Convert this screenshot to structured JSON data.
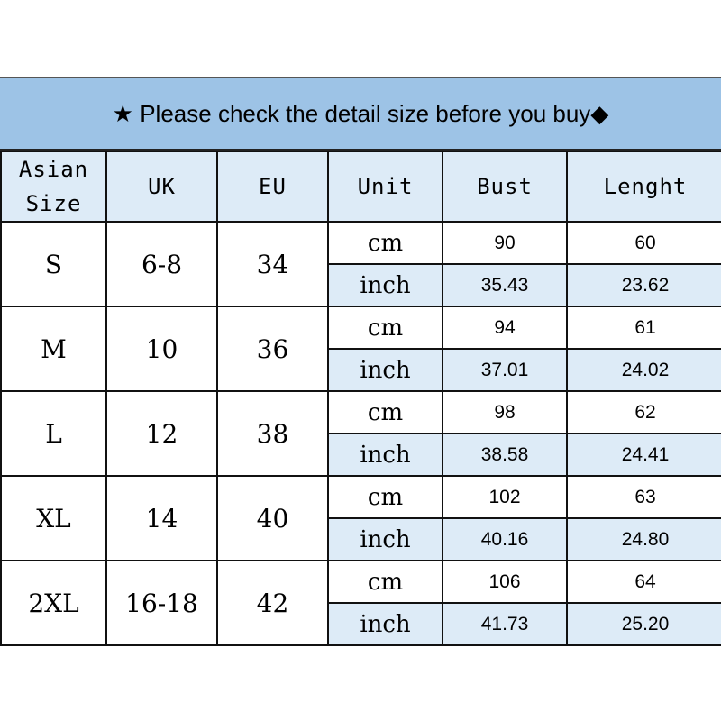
{
  "banner": {
    "star_icon": "★",
    "text": "Please check the detail size before you buy",
    "diamond_icon": "◆"
  },
  "colors": {
    "banner": "#9dc3e6",
    "light": "#ddebf7"
  },
  "headers": [
    "Asian Size",
    "UK",
    "EU",
    "Unit",
    "Bust",
    "Lenght"
  ],
  "rows": [
    {
      "size": "S",
      "uk": "6-8",
      "eu": "34",
      "cm": {
        "unit": "cm",
        "bust": "90",
        "length": "60"
      },
      "inch": {
        "unit": "inch",
        "bust": "35.43",
        "length": "23.62"
      }
    },
    {
      "size": "M",
      "uk": "10",
      "eu": "36",
      "cm": {
        "unit": "cm",
        "bust": "94",
        "length": "61"
      },
      "inch": {
        "unit": "inch",
        "bust": "37.01",
        "length": "24.02"
      }
    },
    {
      "size": "L",
      "uk": "12",
      "eu": "38",
      "cm": {
        "unit": "cm",
        "bust": "98",
        "length": "62"
      },
      "inch": {
        "unit": "inch",
        "bust": "38.58",
        "length": "24.41"
      }
    },
    {
      "size": "XL",
      "uk": "14",
      "eu": "40",
      "cm": {
        "unit": "cm",
        "bust": "102",
        "length": "63"
      },
      "inch": {
        "unit": "inch",
        "bust": "40.16",
        "length": "24.80"
      }
    },
    {
      "size": "2XL",
      "uk": "16-18",
      "eu": "42",
      "cm": {
        "unit": "cm",
        "bust": "106",
        "length": "64"
      },
      "inch": {
        "unit": "inch",
        "bust": "41.73",
        "length": "25.20"
      }
    }
  ]
}
